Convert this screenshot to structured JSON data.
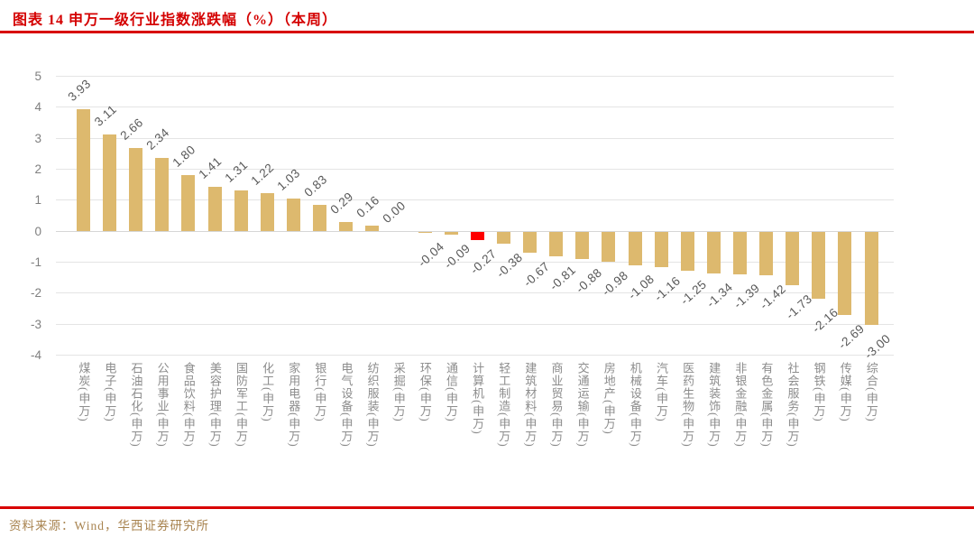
{
  "header": {
    "title": "图表 14 申万一级行业指数涨跌幅（%）（本周）"
  },
  "footer": {
    "source": "资料来源：Wind，华西证券研究所"
  },
  "colors": {
    "title_red": "#d40000",
    "rule_red": "#d80000",
    "bar_gold": "#ddb96e",
    "highlight_red": "#fe0000",
    "label_gray": "#595959",
    "axis_gray": "#7f7f7f",
    "category_gray": "#8c8c8c",
    "grid_gray": "#e4e4e4",
    "source_gold": "#a8834f"
  },
  "chart_data": {
    "type": "bar",
    "title": "申万一级行业指数涨跌幅（%）（本周）",
    "xlabel": "",
    "ylabel": "",
    "ylim": [
      -4,
      5
    ],
    "yticks": [
      5,
      4,
      3,
      2,
      1,
      0,
      -1,
      -2,
      -3,
      -4
    ],
    "grid": true,
    "legend": "none",
    "value_label_format": "0.00",
    "highlight_index": 15,
    "categories": [
      "煤炭(申万)",
      "电子(申万)",
      "石油石化(申万)",
      "公用事业(申万)",
      "食品饮料(申万)",
      "美容护理(申万)",
      "国防军工(申万)",
      "化工(申万)",
      "家用电器(申万)",
      "银行(申万)",
      "电气设备(申万)",
      "纺织服装(申万)",
      "采掘(申万)",
      "环保(申万)",
      "通信(申万)",
      "计算机(申万)",
      "轻工制造(申万)",
      "建筑材料(申万)",
      "商业贸易(申万)",
      "交通运输(申万)",
      "房地产(申万)",
      "机械设备(申万)",
      "汽车(申万)",
      "医药生物(申万)",
      "建筑装饰(申万)",
      "非银金融(申万)",
      "有色金属(申万)",
      "社会服务(申万)",
      "钢铁(申万)",
      "传媒(申万)",
      "综合(申万)"
    ],
    "values": [
      3.93,
      3.11,
      2.66,
      2.34,
      1.8,
      1.41,
      1.31,
      1.22,
      1.03,
      0.83,
      0.29,
      0.16,
      0.0,
      -0.04,
      -0.09,
      -0.27,
      -0.38,
      -0.67,
      -0.81,
      -0.88,
      -0.98,
      -1.08,
      -1.16,
      -1.25,
      -1.34,
      -1.39,
      -1.42,
      -1.73,
      -2.16,
      -2.69,
      -3.0
    ]
  }
}
